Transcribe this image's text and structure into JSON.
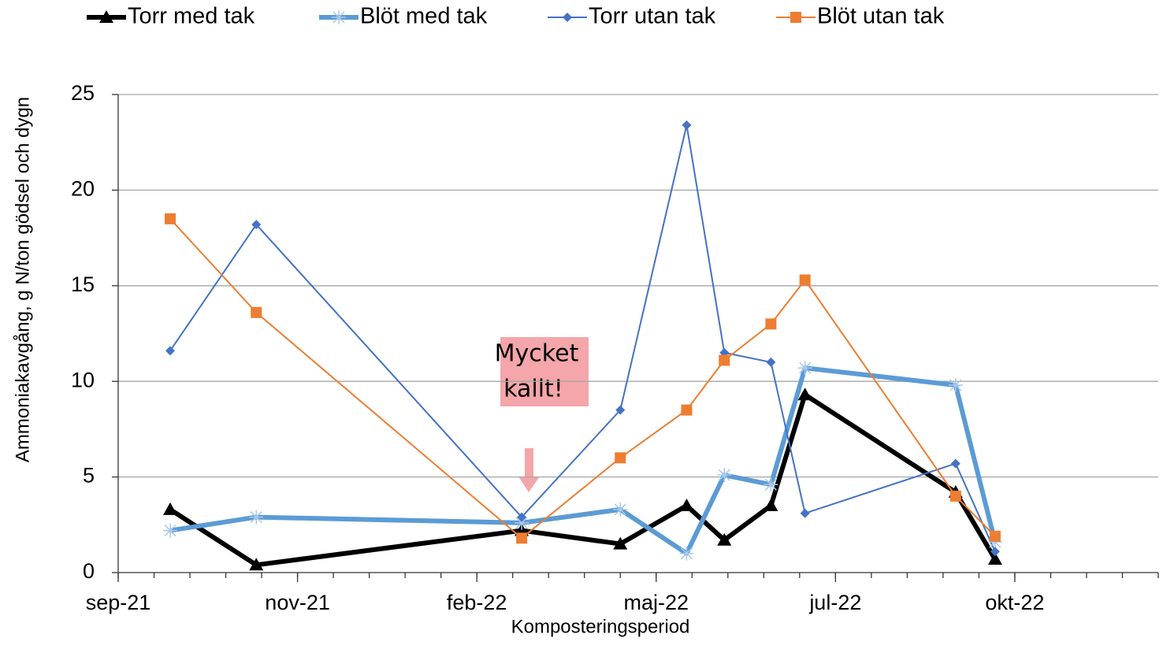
{
  "chart_data": {
    "type": "line",
    "y_label": "Ammoniakavgång, g N/ton gödsel och dygn",
    "x_label": "Komposteringsperiod",
    "annotation": [
      "Mycket",
      "kallt!"
    ],
    "x": [
      0.29,
      0.77,
      2.25,
      2.8,
      3.17,
      3.38,
      3.64,
      3.83,
      4.67,
      4.89
    ],
    "xlim": [
      0,
      5.8
    ],
    "xticks": [
      {
        "value": 0,
        "label": "sep-21"
      },
      {
        "value": 1,
        "label": "nov-21"
      },
      {
        "value": 2,
        "label": "feb-22"
      },
      {
        "value": 3,
        "label": "maj-22"
      },
      {
        "value": 4,
        "label": "jul-22"
      },
      {
        "value": 5,
        "label": "okt-22"
      }
    ],
    "ylim": [
      0,
      25
    ],
    "yticks": [
      0,
      5,
      10,
      15,
      20,
      25
    ],
    "grid": true,
    "legend": "top",
    "series": [
      {
        "name": "Torr med tak",
        "color": "#000000",
        "marker": "triangle",
        "width": 6,
        "values": [
          3.3,
          0.4,
          2.2,
          1.5,
          3.5,
          1.7,
          3.5,
          9.3,
          4.2,
          0.7
        ]
      },
      {
        "name": "Blöt med tak",
        "color": "#5b9bd5",
        "marker": "star",
        "width": 6,
        "values": [
          2.2,
          2.9,
          2.6,
          3.3,
          1.0,
          5.1,
          4.6,
          10.7,
          9.8,
          1.6
        ]
      },
      {
        "name": "Torr utan tak",
        "color": "#4472c4",
        "marker": "diamond",
        "width": 2,
        "values": [
          11.6,
          18.2,
          2.9,
          8.5,
          23.4,
          11.5,
          11.0,
          3.1,
          5.7,
          1.1
        ]
      },
      {
        "name": "Blöt utan tak",
        "color": "#ed7d31",
        "marker": "square",
        "width": 2,
        "values": [
          18.5,
          13.6,
          1.8,
          6.0,
          8.5,
          11.1,
          13.0,
          15.3,
          4.0,
          1.9
        ]
      }
    ]
  }
}
